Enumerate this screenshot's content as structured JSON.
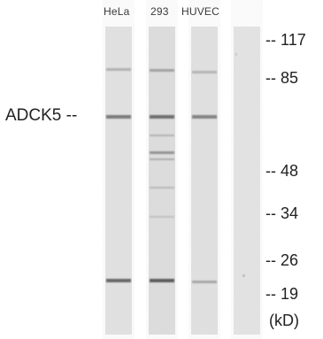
{
  "lanes": [
    "HeLa",
    "293",
    "HUVEC"
  ],
  "protein": {
    "name": "ADCK5",
    "marker": "--"
  },
  "mw_markers": [
    {
      "value": "117",
      "marker": "--"
    },
    {
      "value": "85",
      "marker": "--"
    },
    {
      "value": "48",
      "marker": "--"
    },
    {
      "value": "34",
      "marker": "--"
    },
    {
      "value": "26",
      "marker": "--"
    },
    {
      "value": "19",
      "marker": "--"
    }
  ],
  "unit": "(kD)",
  "colors": {
    "membrane": "#e4e4e4",
    "band": "#6a6a6a",
    "text": "#222222"
  }
}
